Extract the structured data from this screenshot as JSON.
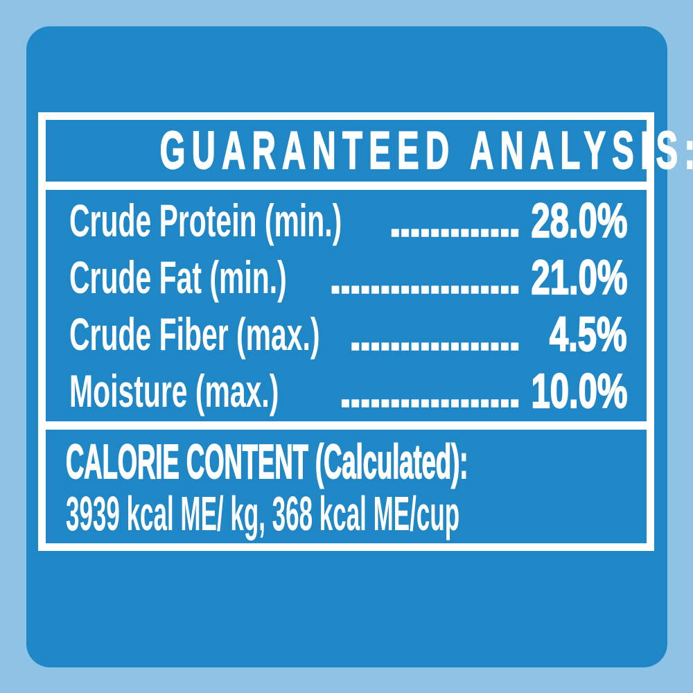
{
  "colors": {
    "page_background": "#8FC3E5",
    "card_background": "#1F87C5",
    "text": "#FFFFFF"
  },
  "analysis": {
    "header": "GUARANTEED ANALYSIS:",
    "rows": [
      {
        "name": "Crude Protein (min.)",
        "leader": ".............",
        "value": "28.0%"
      },
      {
        "name": "Crude Fat (min.)",
        "leader": "...................",
        "value": "21.0%"
      },
      {
        "name": "Crude Fiber (max.)",
        "leader": ".................",
        "value": "4.5%"
      },
      {
        "name": "Moisture (max.)",
        "leader": "..................",
        "value": "10.0%"
      }
    ],
    "calorie": {
      "title": "CALORIE CONTENT (Calculated):",
      "line": "3939 kcal ME/ kg, 368 kcal ME/cup"
    }
  }
}
